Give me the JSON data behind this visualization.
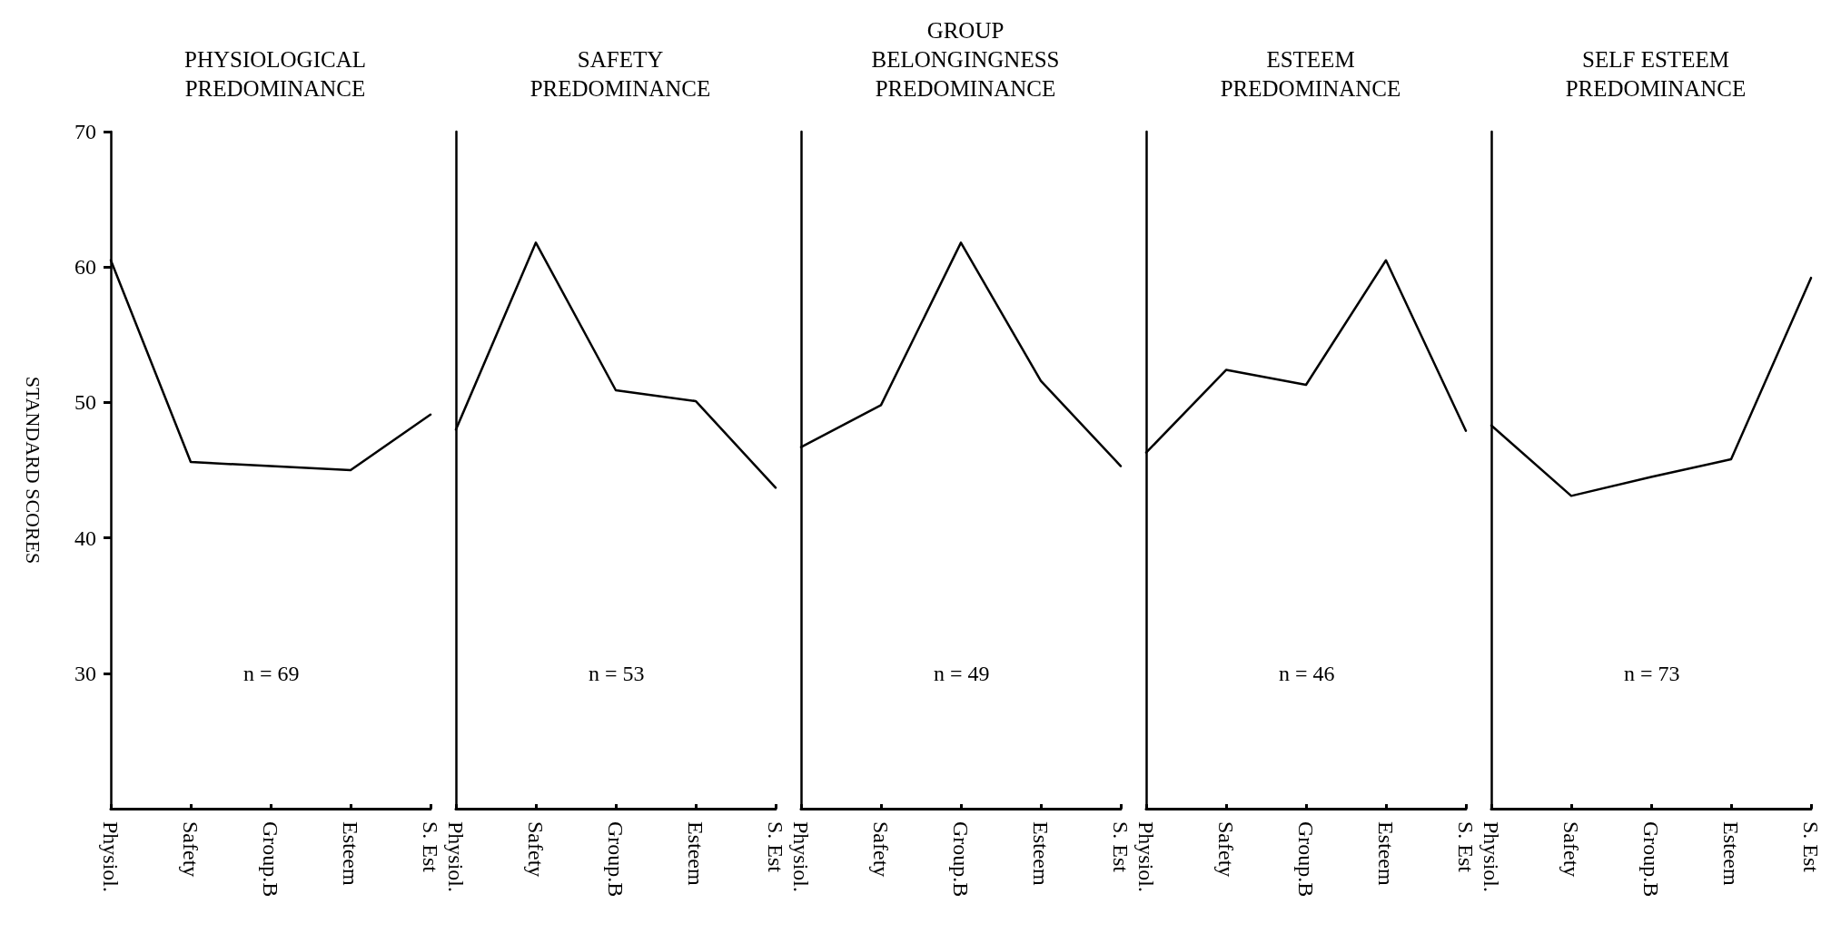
{
  "chart_data": [
    {
      "type": "line",
      "title": "PHYSIOLOGICAL\nPREDOMINANCE",
      "ylabel": "STANDARD SCORES",
      "categories": [
        "Physiol.",
        "Safety",
        "Group.B",
        "Esteem",
        "S. Est"
      ],
      "values": [
        60.5,
        45.6,
        45.3,
        45.0,
        49.1
      ],
      "color": "#000000",
      "ylim": [
        20,
        70
      ],
      "yticks": [
        30,
        40,
        50,
        60,
        70
      ],
      "grid": false,
      "marker": "none",
      "line_style": "solid",
      "annotations": [
        "n = 69"
      ]
    },
    {
      "type": "line",
      "title": "SAFETY\nPREDOMINANCE",
      "categories": [
        "Physiol.",
        "Safety",
        "Group.B",
        "Esteem",
        "S. Est"
      ],
      "values": [
        48.0,
        61.8,
        50.9,
        50.1,
        43.7
      ],
      "color": "#000000",
      "ylim": [
        20,
        70
      ],
      "yticks": [
        30,
        40,
        50,
        60,
        70
      ],
      "grid": false,
      "marker": "none",
      "line_style": "solid",
      "tick_labels": "x",
      "annotations": [
        "n = 53"
      ]
    },
    {
      "type": "line",
      "title": "GROUP\nBELONGINGNESS\nPREDOMINANCE",
      "categories": [
        "Physiol.",
        "Safety",
        "Group.B",
        "Esteem",
        "S. Est"
      ],
      "values": [
        46.7,
        49.8,
        61.8,
        51.6,
        45.3
      ],
      "color": "#000000",
      "ylim": [
        20,
        70
      ],
      "yticks": [
        30,
        40,
        50,
        60,
        70
      ],
      "grid": false,
      "marker": "none",
      "line_style": "solid",
      "tick_labels": "x",
      "annotations": [
        "n = 49"
      ]
    },
    {
      "type": "line",
      "title": "ESTEEM\nPREDOMINANCE",
      "categories": [
        "Physiol.",
        "Safety",
        "Group.B",
        "Esteem",
        "S. Est"
      ],
      "values": [
        46.3,
        52.4,
        51.3,
        60.5,
        47.9
      ],
      "color": "#000000",
      "ylim": [
        20,
        70
      ],
      "yticks": [
        30,
        40,
        50,
        60,
        70
      ],
      "grid": false,
      "marker": "none",
      "line_style": "solid",
      "tick_labels": "x",
      "annotations": [
        "n = 46"
      ]
    },
    {
      "type": "line",
      "title": "SELF ESTEEM\nPREDOMINANCE",
      "categories": [
        "Physiol.",
        "Safety",
        "Group.B",
        "Esteem",
        "S. Est"
      ],
      "values": [
        48.3,
        43.1,
        44.5,
        45.8,
        59.2
      ],
      "color": "#000000",
      "ylim": [
        20,
        70
      ],
      "yticks": [
        30,
        40,
        50,
        60,
        70
      ],
      "grid": false,
      "marker": "none",
      "line_style": "solid",
      "tick_labels": "x",
      "annotations": [
        "n = 73"
      ]
    }
  ]
}
